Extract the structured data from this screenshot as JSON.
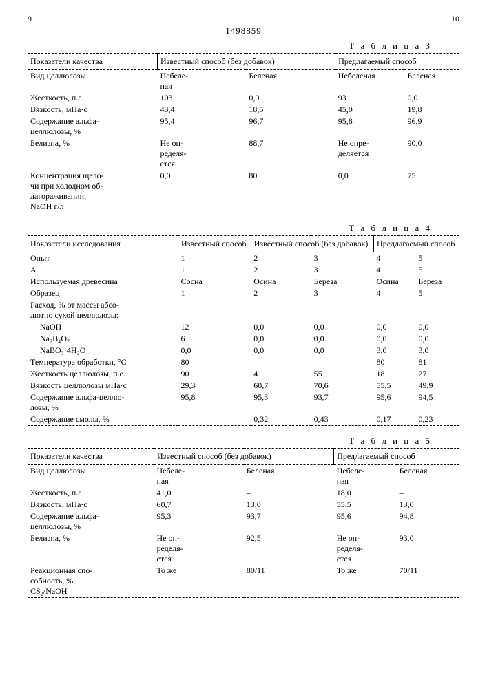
{
  "page": {
    "left_num": "9",
    "right_num": "10",
    "patent": "1498859"
  },
  "t3": {
    "label": "Т а б л и ц а  3",
    "h": {
      "c1": "Показатели качества",
      "c2": "Известный способ (без добавок)",
      "c3": "Предлагаемый способ"
    },
    "rows": {
      "r0": {
        "l": "Вид целлюлозы",
        "a": "Небеле-\nная",
        "b": "Беленая",
        "c": "Небеленая",
        "d": "Беленая"
      },
      "r1": {
        "l": "Жесткость, п.е.",
        "a": "103",
        "b": "0,0",
        "c": "93",
        "d": "0,0"
      },
      "r2": {
        "l": "Вязкость, мПа·с",
        "a": "43,4",
        "b": "18,5",
        "c": "45,0",
        "d": "19,8"
      },
      "r3": {
        "l": "Содержание альфа-\nцеллюлозы, %",
        "a": "95,4",
        "b": "96,7",
        "c": "95,8",
        "d": "96,9"
      },
      "r4": {
        "l": "Белизна, %",
        "a": "Не оп-\nределя-\nется",
        "b": "88,7",
        "c": "Не опре-\nделяется",
        "d": "90,0"
      },
      "r5": {
        "l": "Концентрация щело-\nчи при холодном об-\nлагораживании,\nNaOH г/л",
        "a": "0,0",
        "b": "80",
        "c": "0,0",
        "d": "75"
      }
    }
  },
  "t4": {
    "label": "Т а б л и ц а  4",
    "h": {
      "c1": "Показатели исследования",
      "c2": "Известный способ",
      "c3": "Известный способ (без добавок)",
      "c4": "Предлагаемый способ"
    },
    "rows": {
      "r0": {
        "l": "Опыт",
        "a": "1",
        "b": "2",
        "c": "3",
        "d": "4",
        "e": "5"
      },
      "r1": {
        "l": "А",
        "a": "1",
        "b": "2",
        "c": "3",
        "d": "4",
        "e": "5"
      },
      "r2": {
        "l": "Используемая древесина",
        "a": "Сосна",
        "b": "Осина",
        "c": "Береза",
        "d": "Осина",
        "e": "Береза"
      },
      "r3": {
        "l": "Образец",
        "a": "1",
        "b": "2",
        "c": "3",
        "d": "4",
        "e": "5"
      },
      "r4": {
        "l": "Расход, % от массы абсо-\nлютно сухой целлюлозы:",
        "a": "",
        "b": "",
        "c": "",
        "d": "",
        "e": ""
      },
      "r5": {
        "l": "NaOH",
        "a": "12",
        "b": "0,0",
        "c": "0,0",
        "d": "0,0",
        "e": "0,0"
      },
      "r6": {
        "l": "Na₂B₄O₇",
        "a": "6",
        "b": "0,0",
        "c": "0,0",
        "d": "0,0",
        "e": "0,0"
      },
      "r7": {
        "l": "NaBO₃·4H₂O",
        "a": "0,0",
        "b": "0,0",
        "c": "0,0",
        "d": "3,0",
        "e": "3,0"
      },
      "r8": {
        "l": "Температура обработки, °С",
        "a": "80",
        "b": "–",
        "c": "–",
        "d": "80",
        "e": "81"
      },
      "r9": {
        "l": "Жесткость целлюлозы, п.е.",
        "a": "90",
        "b": "41",
        "c": "55",
        "d": "18",
        "e": "27"
      },
      "r10": {
        "l": "Вязкость целлюлозы мПа·с",
        "a": "29,3",
        "b": "60,7",
        "c": "70,6",
        "d": "55,5",
        "e": "49,9"
      },
      "r11": {
        "l": "Содержание альфа-целлю-\nлозы, %",
        "a": "95,8",
        "b": "95,3",
        "c": "93,7",
        "d": "95,6",
        "e": "94,5"
      },
      "r12": {
        "l": "Содержание смолы, %",
        "a": "–",
        "b": "0,32",
        "c": "0,43",
        "d": "0,17",
        "e": "0,23"
      }
    }
  },
  "t5": {
    "label": "Т а б л и ц а  5",
    "h": {
      "c1": "Показатели качества",
      "c2": "Известный способ (без добавок)",
      "c3": "Предлагаемый способ"
    },
    "rows": {
      "r0": {
        "l": "Вид целлюлозы",
        "a": "Небеле-\nная",
        "b": "Беленая",
        "c": "Небеле-\nная",
        "d": "Беленая"
      },
      "r1": {
        "l": "Жесткость, п.е.",
        "a": "41,0",
        "b": "–",
        "c": "18,0",
        "d": "–"
      },
      "r2": {
        "l": "Вязкость, мПа·с",
        "a": "60,7",
        "b": "13,0",
        "c": "55,5",
        "d": "13,0"
      },
      "r3": {
        "l": "Содержание альфа-\nцеллюлозы, %",
        "a": "95,3",
        "b": "93,7",
        "c": "95,6",
        "d": "94,8"
      },
      "r4": {
        "l": "Белизна, %",
        "a": "Не оп-\nределя-\nется",
        "b": "92,5",
        "c": "Не оп-\nределя-\nется",
        "d": "93,0"
      },
      "r5": {
        "l": "Реакционная спо-\nсобность, %\nCS₂/NaOH",
        "a": "То же",
        "b": "80/11",
        "c": "То же",
        "d": "70/11"
      }
    }
  }
}
